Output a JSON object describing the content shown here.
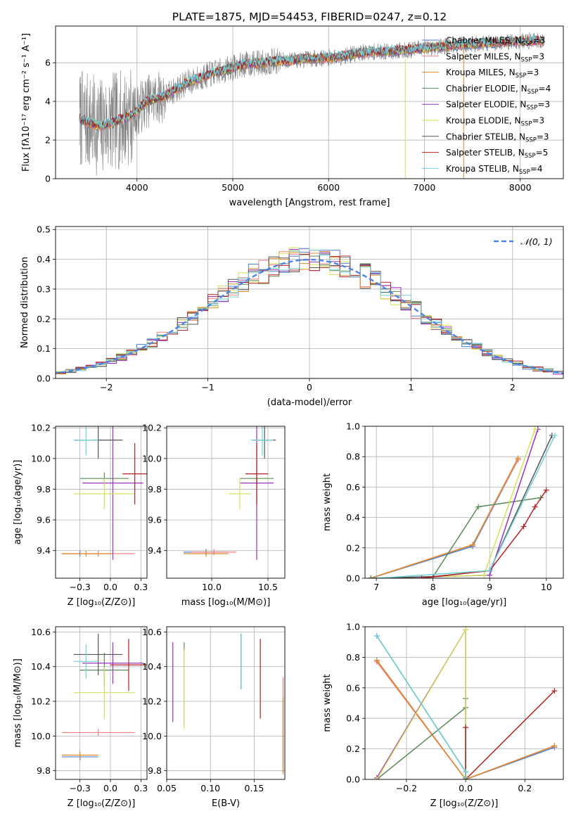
{
  "colors": {
    "Chabrier MILES": "#4c7fcf",
    "Salpeter MILES": "#f08080",
    "Kroupa MILES": "#e08a2c",
    "Chabrier ELODIE": "#5a8a5a",
    "Salpeter ELODIE": "#9b30c0",
    "Kroupa ELODIE": "#d6e05a",
    "Chabrier STELIB": "#555555",
    "Salpeter STELIB": "#b22222",
    "Kroupa STELIB": "#70d0d8",
    "data": "#808080",
    "normal": "#4a86e8"
  },
  "chart_data": [
    {
      "id": "spectrum",
      "type": "line",
      "title": "PLATE=1875, MJD=54453, FIBERID=0247, z=0.12",
      "xlabel": "wavelength [Angstrom, rest frame]",
      "ylabel": "Flux [fλ10⁻¹⁷ erg cm⁻² s⁻¹ A⁻¹]",
      "xlim": [
        3150,
        8450
      ],
      "ylim": [
        0,
        7.9
      ],
      "xticks": [
        4000,
        5000,
        6000,
        7000,
        8000
      ],
      "yticks": [
        0,
        2,
        4,
        6
      ],
      "legend_position": "top-right",
      "legend": [
        {
          "label": "Chabrier MILES, N",
          "sub": "SSP",
          "tail": "=3"
        },
        {
          "label": "Salpeter MILES, N",
          "sub": "SSP",
          "tail": "=3"
        },
        {
          "label": "Kroupa MILES, N",
          "sub": "SSP",
          "tail": "=3"
        },
        {
          "label": "Chabrier ELODIE, N",
          "sub": "SSP",
          "tail": "=4"
        },
        {
          "label": "Salpeter ELODIE, N",
          "sub": "SSP",
          "tail": "=3"
        },
        {
          "label": "Kroupa ELODIE, N",
          "sub": "SSP",
          "tail": "=3"
        },
        {
          "label": "Chabrier STELIB, N",
          "sub": "SSP",
          "tail": "=3"
        },
        {
          "label": "Salpeter STELIB, N",
          "sub": "SSP",
          "tail": "=5"
        },
        {
          "label": "Kroupa STELIB, N",
          "sub": "SSP",
          "tail": "=4"
        }
      ],
      "continuum": [
        [
          3400,
          3.1
        ],
        [
          3600,
          2.7
        ],
        [
          3800,
          3.0
        ],
        [
          3950,
          3.3
        ],
        [
          4100,
          4.0
        ],
        [
          4300,
          4.3
        ],
        [
          4500,
          4.9
        ],
        [
          4700,
          5.3
        ],
        [
          4900,
          5.6
        ],
        [
          5100,
          5.9
        ],
        [
          5300,
          6.0
        ],
        [
          5500,
          6.1
        ],
        [
          5800,
          6.2
        ],
        [
          6100,
          6.3
        ],
        [
          6400,
          6.55
        ],
        [
          6700,
          6.6
        ],
        [
          7000,
          6.75
        ],
        [
          7300,
          6.9
        ],
        [
          7600,
          7.0
        ],
        [
          7900,
          7.1
        ],
        [
          8200,
          7.15
        ]
      ]
    },
    {
      "id": "residuals",
      "type": "histogram",
      "xlabel": "(data-model)/error",
      "ylabel": "Normed distribution",
      "xlim": [
        -2.5,
        2.5
      ],
      "ylim": [
        0,
        0.51
      ],
      "xticks": [
        -2,
        -1,
        0,
        1,
        2
      ],
      "yticks": [
        0.0,
        0.1,
        0.2,
        0.3,
        0.4,
        0.5
      ],
      "legend": "𝒩(0, 1)",
      "legend_position": "top-right",
      "bin_width": 0.1,
      "grid": true
    },
    {
      "id": "age-vs-Z",
      "type": "errorbar",
      "xlabel": "Z [log₁₀(Z/Z⊙)]",
      "ylabel": "age  [log₁₀(age/yr)]",
      "xlim": [
        -0.45,
        0.3
      ],
      "ylim": [
        9.22,
        10.21
      ],
      "xticks": [
        -0.25,
        0.0,
        0.25
      ],
      "yticks": [
        9.4,
        9.6,
        9.8,
        10.0,
        10.2
      ],
      "points": [
        {
          "model": "Chabrier MILES",
          "x": -0.25,
          "xerr": 0.15,
          "y": 9.38,
          "yerr": 0.02
        },
        {
          "model": "Salpeter MILES",
          "x": -0.1,
          "xerr": 0.3,
          "y": 9.38,
          "yerr": 0.02
        },
        {
          "model": "Kroupa MILES",
          "x": -0.2,
          "xerr": 0.2,
          "y": 9.38,
          "yerr": 0.02
        },
        {
          "model": "Chabrier ELODIE",
          "x": -0.05,
          "xerr": 0.2,
          "y": 9.87,
          "yerr": 0.04
        },
        {
          "model": "Salpeter ELODIE",
          "x": 0.02,
          "xerr": 0.25,
          "y": 9.84,
          "yerr": 0.5
        },
        {
          "model": "Kroupa ELODIE",
          "x": -0.05,
          "xerr": 0.25,
          "y": 9.77,
          "yerr": 0.1
        },
        {
          "model": "Chabrier STELIB",
          "x": -0.1,
          "xerr": 0.2,
          "y": 10.12,
          "yerr": 0.12
        },
        {
          "model": "Salpeter STELIB",
          "x": 0.2,
          "xerr": 0.1,
          "y": 9.9,
          "yerr": 0.2
        },
        {
          "model": "Kroupa STELIB",
          "x": -0.2,
          "xerr": 0.1,
          "y": 10.12,
          "yerr": 0.1
        }
      ]
    },
    {
      "id": "age-vs-mass",
      "type": "errorbar",
      "xlabel": "mass [log₁₀(M/M⊙)]",
      "ylabel": "",
      "xlim": [
        9.6,
        10.65
      ],
      "ylim": [
        9.22,
        10.21
      ],
      "xticks": [
        10.0,
        10.5
      ],
      "yticks": [
        9.4,
        9.6,
        9.8,
        10.0,
        10.2
      ],
      "points": [
        {
          "model": "Chabrier MILES",
          "x": 9.95,
          "xerr": 0.2,
          "y": 9.39,
          "yerr": 0.02
        },
        {
          "model": "Salpeter MILES",
          "x": 10.02,
          "xerr": 0.2,
          "y": 9.39,
          "yerr": 0.02
        },
        {
          "model": "Kroupa MILES",
          "x": 9.95,
          "xerr": 0.2,
          "y": 9.38,
          "yerr": 0.02
        },
        {
          "model": "Chabrier ELODIE",
          "x": 10.4,
          "xerr": 0.15,
          "y": 9.87,
          "yerr": 0.04
        },
        {
          "model": "Salpeter ELODIE",
          "x": 10.4,
          "xerr": 0.15,
          "y": 9.84,
          "yerr": 0.5
        },
        {
          "model": "Kroupa ELODIE",
          "x": 10.25,
          "xerr": 0.1,
          "y": 9.77,
          "yerr": 0.1
        },
        {
          "model": "Chabrier STELIB",
          "x": 10.47,
          "xerr": 0.1,
          "y": 10.12,
          "yerr": 0.12
        },
        {
          "model": "Salpeter STELIB",
          "x": 10.4,
          "xerr": 0.1,
          "y": 9.9,
          "yerr": 0.2
        },
        {
          "model": "Kroupa STELIB",
          "x": 10.45,
          "xerr": 0.1,
          "y": 10.12,
          "yerr": 0.1
        }
      ]
    },
    {
      "id": "mass-weight-vs-age",
      "type": "line",
      "xlabel": "age  [log₁₀(age/yr)]",
      "ylabel": "mass weight",
      "xlim": [
        6.8,
        10.3
      ],
      "ylim": [
        0,
        1.0
      ],
      "xticks": [
        7,
        8,
        9,
        10
      ],
      "yticks": [
        0.0,
        0.2,
        0.4,
        0.6,
        0.8,
        1.0
      ],
      "series": [
        {
          "model": "Chabrier MILES",
          "x": [
            6.9,
            8.7,
            9.5
          ],
          "y": [
            0.0,
            0.21,
            0.78
          ]
        },
        {
          "model": "Salpeter MILES",
          "x": [
            6.9,
            8.7,
            9.5
          ],
          "y": [
            0.0,
            0.22,
            0.78
          ]
        },
        {
          "model": "Kroupa MILES",
          "x": [
            6.9,
            8.7,
            9.5
          ],
          "y": [
            0.0,
            0.22,
            0.79
          ]
        },
        {
          "model": "Chabrier ELODIE",
          "x": [
            6.9,
            8.0,
            8.8,
            9.9
          ],
          "y": [
            0.0,
            0.01,
            0.47,
            0.53
          ]
        },
        {
          "model": "Salpeter ELODIE",
          "x": [
            7.0,
            9.0,
            9.85
          ],
          "y": [
            0.0,
            0.02,
            0.98
          ]
        },
        {
          "model": "Kroupa ELODIE",
          "x": [
            7.0,
            8.9,
            9.8
          ],
          "y": [
            0.0,
            0.02,
            0.98
          ]
        },
        {
          "model": "Chabrier STELIB",
          "x": [
            7.0,
            8.0,
            9.0,
            10.1
          ],
          "y": [
            0.0,
            0.01,
            0.05,
            0.94
          ]
        },
        {
          "model": "Salpeter STELIB",
          "x": [
            7.8,
            9.0,
            9.6,
            9.8,
            10.0
          ],
          "y": [
            0.0,
            0.05,
            0.34,
            0.47,
            0.58
          ]
        },
        {
          "model": "Kroupa STELIB",
          "x": [
            7.0,
            9.0,
            10.15
          ],
          "y": [
            0.0,
            0.05,
            0.94
          ]
        }
      ]
    },
    {
      "id": "mass-vs-Z",
      "type": "errorbar",
      "xlabel": "Z [log₁₀(Z/Z⊙)]",
      "ylabel": "mass [log₁₀(M/M⊙)]",
      "xlim": [
        -0.45,
        0.3
      ],
      "ylim": [
        9.75,
        10.63
      ],
      "xticks": [
        -0.25,
        0.0,
        0.25
      ],
      "yticks": [
        9.8,
        10.0,
        10.2,
        10.4,
        10.6
      ],
      "points": [
        {
          "model": "Chabrier MILES",
          "x": -0.25,
          "xerr": 0.15,
          "y": 9.88,
          "yerr": 0.02
        },
        {
          "model": "Salpeter MILES",
          "x": -0.1,
          "xerr": 0.3,
          "y": 10.02,
          "yerr": 0.02
        },
        {
          "model": "Kroupa MILES",
          "x": -0.25,
          "xerr": 0.15,
          "y": 9.89,
          "yerr": 0.02
        },
        {
          "model": "Chabrier ELODIE",
          "x": -0.05,
          "xerr": 0.2,
          "y": 10.38,
          "yerr": 0.1
        },
        {
          "model": "Salpeter ELODIE",
          "x": 0.02,
          "xerr": 0.25,
          "y": 10.42,
          "yerr": 0.12
        },
        {
          "model": "Kroupa ELODIE",
          "x": -0.05,
          "xerr": 0.25,
          "y": 10.25,
          "yerr": 0.15
        },
        {
          "model": "Chabrier STELIB",
          "x": -0.1,
          "xerr": 0.2,
          "y": 10.47,
          "yerr": 0.12
        },
        {
          "model": "Salpeter STELIB",
          "x": 0.15,
          "xerr": 0.15,
          "y": 10.41,
          "yerr": 0.15
        },
        {
          "model": "Kroupa STELIB",
          "x": -0.2,
          "xerr": 0.1,
          "y": 10.43,
          "yerr": 0.1
        }
      ]
    },
    {
      "id": "mass-vs-ebv",
      "type": "errorbar",
      "xlabel": "E(B-V)",
      "ylabel": "",
      "xlim": [
        0.05,
        0.185
      ],
      "ylim": [
        9.75,
        10.63
      ],
      "xticks": [
        0.05,
        0.1,
        0.15
      ],
      "yticks": [
        9.8,
        10.0,
        10.2,
        10.4,
        10.6
      ],
      "points": [
        {
          "model": "Chabrier MILES",
          "x": 0.183,
          "y": 10.01,
          "yerr": 0.22
        },
        {
          "model": "Salpeter MILES",
          "x": 0.183,
          "y": 10.06,
          "yerr": 0.28
        },
        {
          "model": "Kroupa MILES",
          "x": 0.183,
          "y": 10.0,
          "yerr": 0.22
        },
        {
          "model": "Chabrier ELODIE",
          "x": 0.07,
          "y": 10.3,
          "yerr": 0.24
        },
        {
          "model": "Salpeter ELODIE",
          "x": 0.057,
          "y": 10.31,
          "yerr": 0.23
        },
        {
          "model": "Kroupa ELODIE",
          "x": 0.07,
          "y": 10.27,
          "yerr": 0.23
        },
        {
          "model": "Chabrier STELIB",
          "x": 0.135,
          "y": 10.43,
          "yerr": 0.16
        },
        {
          "model": "Salpeter STELIB",
          "x": 0.157,
          "y": 10.33,
          "yerr": 0.23
        },
        {
          "model": "Kroupa STELIB",
          "x": 0.135,
          "y": 10.43,
          "yerr": 0.16
        }
      ]
    },
    {
      "id": "mass-weight-vs-Z",
      "type": "line",
      "xlabel": "Z [log₁₀(Z/Z⊙)]",
      "ylabel": "mass weight",
      "xlim": [
        -0.34,
        0.33
      ],
      "ylim": [
        0,
        1.0
      ],
      "xticks": [
        -0.2,
        0.0,
        0.2
      ],
      "yticks": [
        0.0,
        0.2,
        0.4,
        0.6,
        0.8,
        1.0
      ],
      "series": [
        {
          "model": "Chabrier MILES",
          "x": [
            -0.3,
            0.0,
            0.3
          ],
          "y": [
            0.78,
            0.0,
            0.21
          ]
        },
        {
          "model": "Salpeter MILES",
          "x": [
            -0.3,
            0.0,
            0.3
          ],
          "y": [
            0.77,
            0.0,
            0.22
          ]
        },
        {
          "model": "Kroupa MILES",
          "x": [
            -0.3,
            0.0,
            0.3
          ],
          "y": [
            0.78,
            0.0,
            0.22
          ]
        },
        {
          "model": "Chabrier ELODIE",
          "x": [
            -0.3,
            0.0,
            0.0,
            0.0
          ],
          "y": [
            0.0,
            0.47,
            0.53,
            0.0
          ]
        },
        {
          "model": "Salpeter ELODIE",
          "x": [
            -0.3,
            0.0,
            0.0
          ],
          "y": [
            0.01,
            0.98,
            0.02
          ]
        },
        {
          "model": "Kroupa ELODIE",
          "x": [
            -0.3,
            0.0,
            0.0
          ],
          "y": [
            0.0,
            0.98,
            0.02
          ]
        },
        {
          "model": "Chabrier STELIB",
          "x": [
            -0.3,
            0.0,
            0.0
          ],
          "y": [
            0.94,
            0.05,
            0.01
          ]
        },
        {
          "model": "Salpeter STELIB",
          "x": [
            0.0,
            0.0,
            0.0,
            0.3
          ],
          "y": [
            0.05,
            0.34,
            0.0,
            0.58
          ]
        },
        {
          "model": "Kroupa STELIB",
          "x": [
            -0.3,
            0.0,
            0.0
          ],
          "y": [
            0.94,
            0.05,
            0.01
          ]
        }
      ]
    }
  ]
}
